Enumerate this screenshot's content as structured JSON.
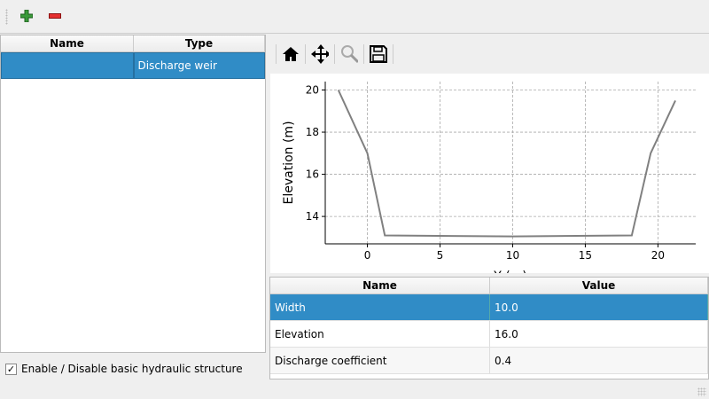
{
  "toolbar": {
    "add_icon": "green-plus",
    "remove_icon": "red-minus"
  },
  "structures_table": {
    "columns": [
      "Name",
      "Type"
    ],
    "rows": [
      {
        "name": "",
        "type": "Discharge weir"
      }
    ]
  },
  "plot_toolbar": {
    "icons": [
      "home-icon",
      "pan-icon",
      "zoom-icon",
      "save-icon"
    ]
  },
  "chart_data": {
    "type": "line",
    "xlabel": "Y (m)",
    "ylabel": "Elevation (m)",
    "xlim": [
      -2.9,
      22.6
    ],
    "ylim": [
      12.7,
      20.4
    ],
    "xticks": [
      0,
      5,
      10,
      15,
      20
    ],
    "yticks": [
      14,
      16,
      18,
      20
    ],
    "grid": true,
    "series": [
      {
        "x": [
          -2.0,
          0.0,
          1.2,
          10.0,
          18.2,
          19.5,
          21.2
        ],
        "y": [
          20.0,
          17.0,
          13.1,
          13.05,
          13.1,
          17.0,
          19.5
        ],
        "color": "#808080"
      }
    ]
  },
  "params_table": {
    "columns": [
      "Name",
      "Value"
    ],
    "rows": [
      {
        "name": "Width",
        "value": "10.0"
      },
      {
        "name": "Elevation",
        "value": "16.0"
      },
      {
        "name": "Discharge coefficient",
        "value": "0.4"
      }
    ]
  },
  "enable_checkbox": {
    "label": "Enable / Disable basic hydraulic structure",
    "checked": true,
    "mark": "✓"
  },
  "colors": {
    "selection": "#308cc6"
  }
}
